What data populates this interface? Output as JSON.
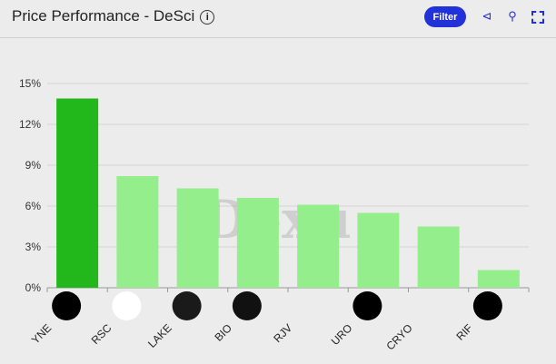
{
  "header": {
    "title": "Price Performance - DeSci",
    "info_icon": "info-icon",
    "filter_label": "Filter",
    "icons": [
      "share-icon",
      "zoom-icon",
      "fullscreen-icon"
    ]
  },
  "watermark": "Dexu",
  "chart_data": {
    "type": "bar",
    "title": "Price Performance - DeSci",
    "categories": [
      "YNE",
      "RSC",
      "LAKE",
      "BIO",
      "RJV",
      "URO",
      "CRYO",
      "RIF"
    ],
    "values": [
      13.9,
      8.2,
      7.3,
      6.6,
      6.1,
      5.5,
      4.5,
      1.3
    ],
    "unit": "%",
    "ylim": [
      0,
      15
    ],
    "yticks": [
      "0%",
      "3%",
      "6%",
      "9%",
      "12%",
      "15%"
    ],
    "grid": true,
    "colors": {
      "highlight": "#22b81c",
      "default": "#95ee8c"
    }
  }
}
